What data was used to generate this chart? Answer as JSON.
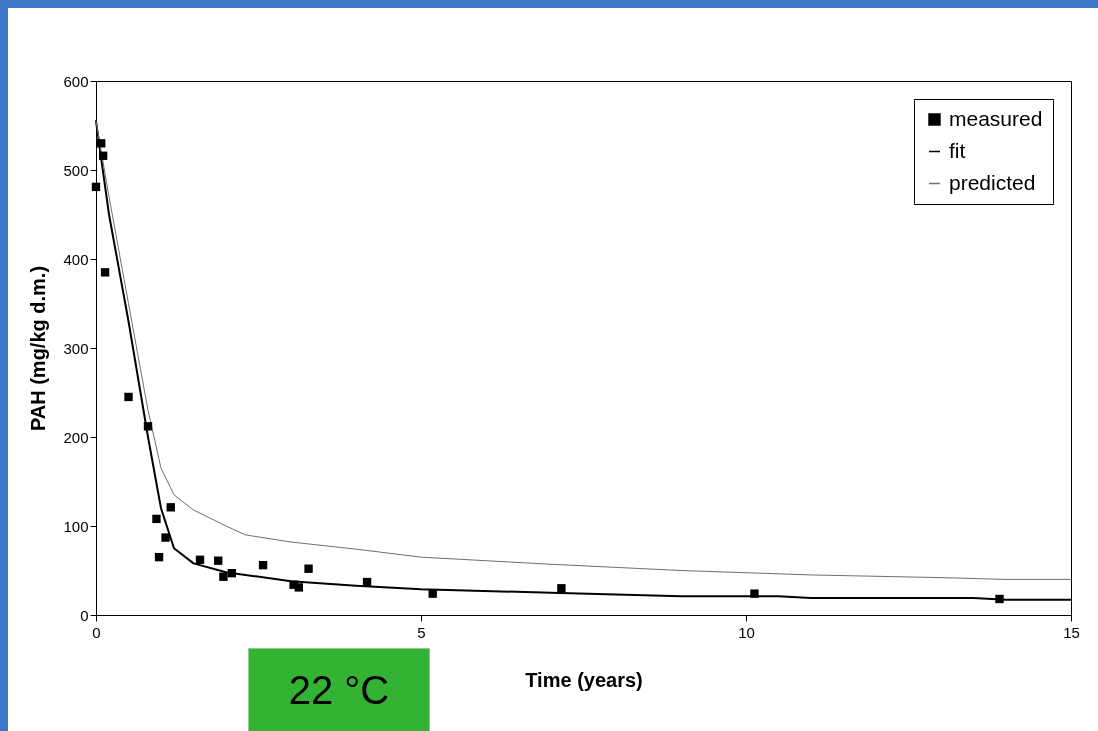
{
  "chart_data": {
    "type": "scatter",
    "xlabel": "Time (years)",
    "ylabel": "PAH (mg/kg d.m.)",
    "annotations": [
      "22 °C"
    ],
    "xlim": [
      0,
      15
    ],
    "xticks": [
      0,
      5,
      10,
      15
    ],
    "ylim": [
      0,
      600
    ],
    "yticks": [
      0,
      100,
      200,
      300,
      400,
      500,
      600
    ],
    "grid": false,
    "legend": "top right",
    "series": [
      {
        "name": "measured",
        "marker": "square",
        "color": "#000000",
        "x": [
          0,
          0.08,
          0.11,
          0.14,
          0.5,
          0.8,
          0.93,
          0.97,
          1.07,
          1.15,
          1.6,
          1.88,
          1.96,
          2.09,
          2.57,
          3.04,
          3.12,
          3.27,
          4.17,
          5.18,
          7.16,
          10.13,
          13.9
        ],
        "values": [
          481,
          530,
          516,
          385,
          245,
          212,
          108,
          65,
          87,
          121,
          62,
          61,
          43,
          47,
          56,
          34,
          31,
          52,
          37,
          24,
          30,
          24,
          18
        ]
      },
      {
        "name": "fit",
        "type": "line",
        "color": "#000000",
        "x": [
          0,
          0.2,
          0.5,
          0.8,
          1.0,
          1.2,
          1.5,
          2,
          3,
          4,
          5,
          7,
          9,
          10.5,
          11,
          13.5,
          14,
          15
        ],
        "values": [
          555,
          450,
          330,
          200,
          120,
          75,
          58,
          48,
          38,
          33,
          29,
          25,
          21,
          21,
          19,
          19,
          17,
          17
        ]
      },
      {
        "name": "predicted",
        "type": "line",
        "color": "#707070",
        "x": [
          0,
          0.2,
          0.5,
          0.8,
          1.0,
          1.2,
          1.5,
          2,
          2.3,
          3,
          4,
          5,
          7,
          9,
          11,
          13,
          14,
          15
        ],
        "values": [
          555,
          470,
          350,
          230,
          165,
          135,
          118,
          100,
          90,
          82,
          74,
          65,
          57,
          50,
          45,
          42,
          40,
          40
        ]
      }
    ]
  }
}
